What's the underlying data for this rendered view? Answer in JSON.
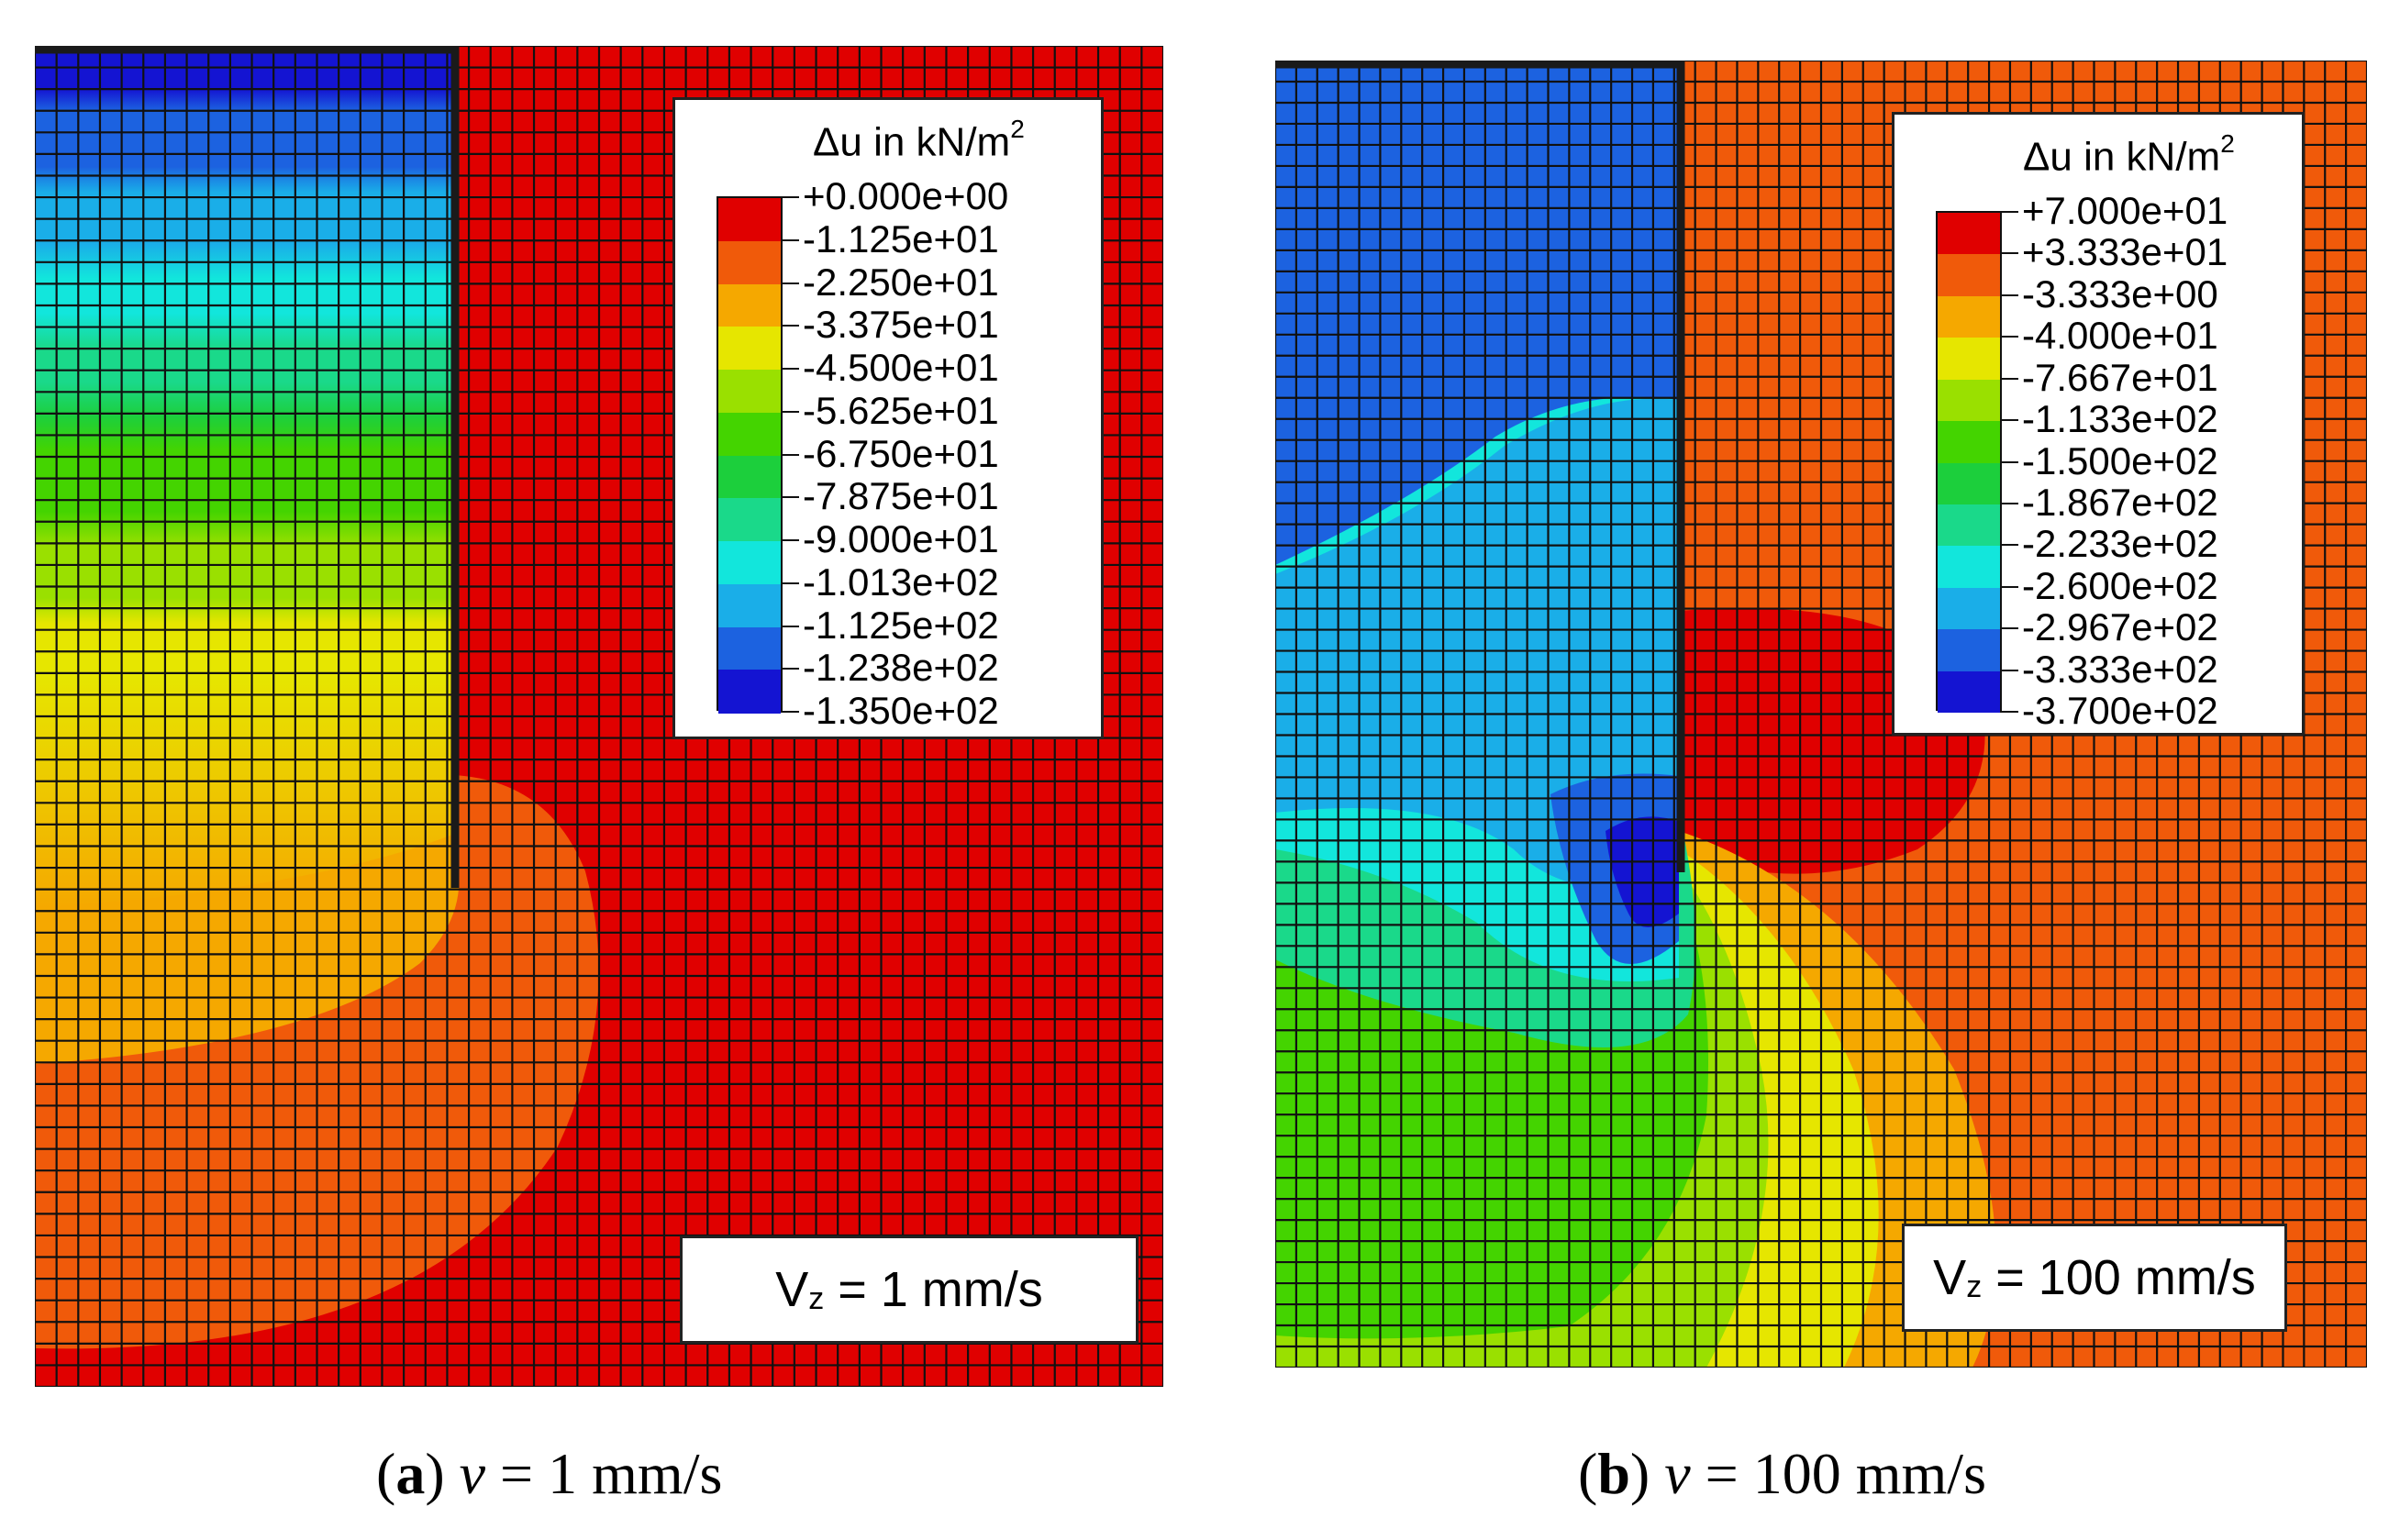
{
  "panels": [
    {
      "id": "a",
      "legend": {
        "title_main": "Δu in kN/m",
        "title_sup": "2",
        "entries": [
          {
            "label": "+0.000e+00",
            "color": "#e00000"
          },
          {
            "label": "-1.125e+01",
            "color": "#f05a0a"
          },
          {
            "label": "-2.250e+01",
            "color": "#f5a800"
          },
          {
            "label": "-3.375e+01",
            "color": "#e6e600"
          },
          {
            "label": "-4.500e+01",
            "color": "#9ae000"
          },
          {
            "label": "-5.625e+01",
            "color": "#44d400"
          },
          {
            "label": "-6.750e+01",
            "color": "#1ccf3c"
          },
          {
            "label": "-7.875e+01",
            "color": "#1ad98a"
          },
          {
            "label": "-9.000e+01",
            "color": "#12e6dc"
          },
          {
            "label": "-1.013e+02",
            "color": "#1aaee8"
          },
          {
            "label": "-1.125e+02",
            "color": "#1c62e0"
          },
          {
            "label": "-1.238e+02",
            "color": "#1414d2"
          },
          {
            "label": "-1.350e+02",
            "color": ""
          }
        ]
      },
      "velocity": {
        "symbol": "V",
        "subscript": "z",
        "rest": " = 1 mm/s"
      },
      "caption": {
        "letter": "a",
        "var": "v",
        "rest": " = 1 mm/s"
      }
    },
    {
      "id": "b",
      "legend": {
        "title_main": "Δu in kN/m",
        "title_sup": "2",
        "entries": [
          {
            "label": "+7.000e+01",
            "color": "#e00000"
          },
          {
            "label": "+3.333e+01",
            "color": "#f05a0a"
          },
          {
            "label": "-3.333e+00",
            "color": "#f5a800"
          },
          {
            "label": "-4.000e+01",
            "color": "#e6e600"
          },
          {
            "label": "-7.667e+01",
            "color": "#9ae000"
          },
          {
            "label": "-1.133e+02",
            "color": "#44d400"
          },
          {
            "label": "-1.500e+02",
            "color": "#1ccf3c"
          },
          {
            "label": "-1.867e+02",
            "color": "#1ad98a"
          },
          {
            "label": "-2.233e+02",
            "color": "#12e6dc"
          },
          {
            "label": "-2.600e+02",
            "color": "#1aaee8"
          },
          {
            "label": "-2.967e+02",
            "color": "#1c62e0"
          },
          {
            "label": "-3.333e+02",
            "color": "#1414d2"
          },
          {
            "label": "-3.700e+02",
            "color": ""
          }
        ]
      },
      "velocity": {
        "symbol": "V",
        "subscript": "z",
        "rest": " = 100 mm/s"
      },
      "caption": {
        "letter": "b",
        "var": "v",
        "rest": " = 100 mm/s"
      }
    }
  ],
  "palette": {
    "red": "#e00000",
    "orange": "#f05a0a",
    "amber": "#f5a800",
    "yellow": "#e6e600",
    "lime": "#9ae000",
    "green": "#44d400",
    "green2": "#1ccf3c",
    "mint": "#1ad98a",
    "cyan": "#12e6dc",
    "sky": "#1aaee8",
    "blue": "#1c62e0",
    "navy": "#1414d2",
    "mesh": "#111111",
    "pile": "#1a1a1a"
  }
}
